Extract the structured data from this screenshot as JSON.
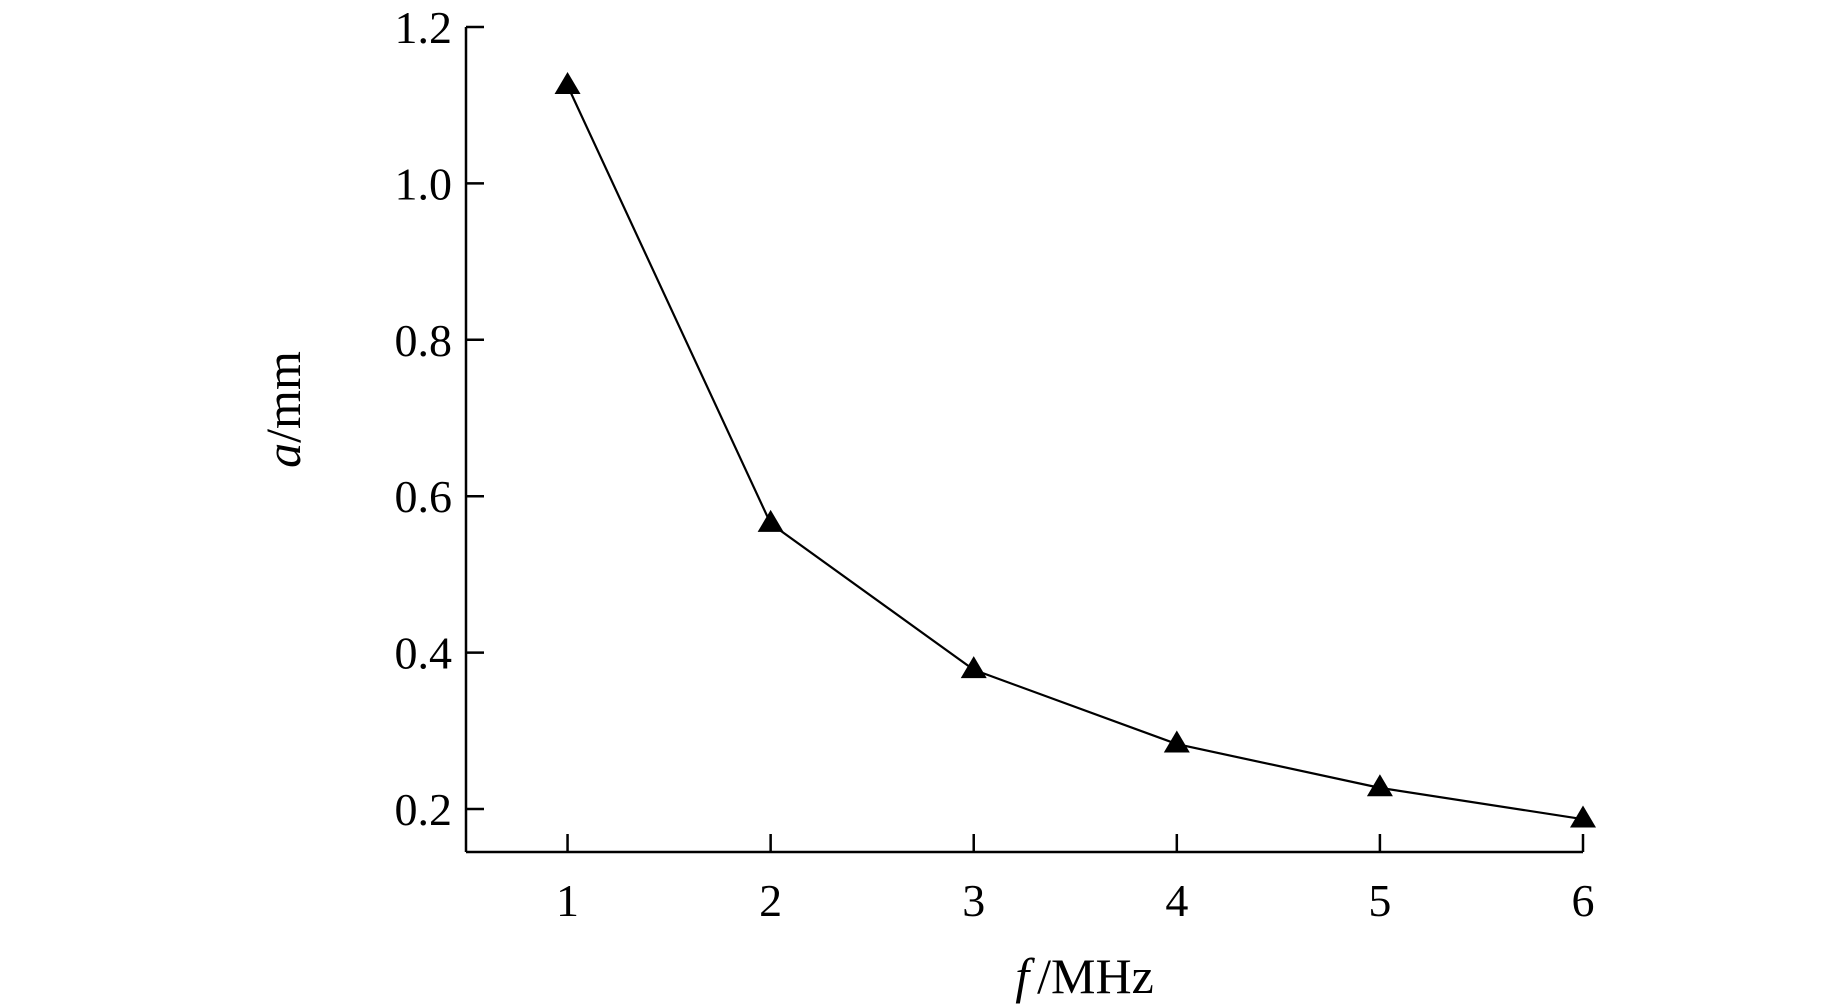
{
  "chart_data": {
    "type": "line",
    "x": [
      1,
      2,
      3,
      4,
      5,
      6
    ],
    "series": [
      {
        "values": [
          1.125,
          0.565,
          0.378,
          0.283,
          0.227,
          0.187
        ],
        "marker": "triangle",
        "color": "#000000"
      }
    ],
    "xlabel": {
      "var": "f",
      "unit": "/MHz"
    },
    "ylabel": {
      "var": "a",
      "unit": "/mm"
    },
    "xlim": [
      0.5,
      6.0
    ],
    "ylim": [
      0.145,
      1.2
    ],
    "xticks": [
      "1",
      "2",
      "3",
      "4",
      "5",
      "6"
    ],
    "yticks": [
      "0.2",
      "0.4",
      "0.6",
      "0.8",
      "1.0",
      "1.2"
    ],
    "ytick_values": [
      0.2,
      0.4,
      0.6,
      0.8,
      1.0,
      1.2
    ],
    "grid": false,
    "legend": "none"
  }
}
